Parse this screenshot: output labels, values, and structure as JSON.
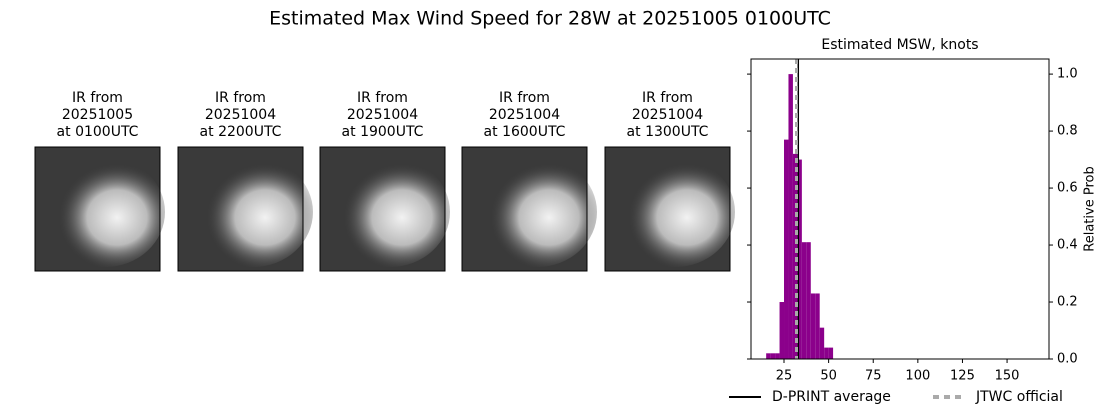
{
  "title": "Estimated Max Wind Speed for 28W at 20251005 0100UTC",
  "panels": [
    {
      "lines": [
        "IR from",
        "20251005",
        "at 0100UTC"
      ]
    },
    {
      "lines": [
        "IR from",
        "20251004",
        "at 2200UTC"
      ]
    },
    {
      "lines": [
        "IR from",
        "20251004",
        "at 1900UTC"
      ]
    },
    {
      "lines": [
        "IR from",
        "20251004",
        "at 1600UTC"
      ]
    },
    {
      "lines": [
        "IR from",
        "20251004",
        "at 1300UTC"
      ]
    }
  ],
  "chart_data": {
    "type": "histogram",
    "title": "Estimated MSW, knots",
    "ylabel": "Relative Prob",
    "bins": [
      15,
      17.5,
      20,
      22.5,
      25,
      27.5,
      30,
      32.5,
      35,
      37.5,
      40,
      42.5,
      45,
      47.5,
      50,
      52.5
    ],
    "values": [
      0.02,
      0.02,
      0.02,
      0.2,
      0.77,
      1.0,
      0.72,
      0.7,
      0.41,
      0.41,
      0.23,
      0.23,
      0.11,
      0.04,
      0.04
    ],
    "color": "#8b008b",
    "xlim": [
      6.5,
      173.5
    ],
    "xticks": [
      25,
      50,
      75,
      100,
      125,
      150
    ],
    "ylim": [
      0,
      1.053
    ],
    "yticks": [
      {
        "value": 0,
        "label": "0.0"
      },
      0.2,
      0.4,
      0.6,
      0.8,
      {
        "value": 1,
        "label": "1.0"
      }
    ],
    "lines": [
      {
        "name": "D-PRINT average",
        "value": 33,
        "color": "#000000",
        "dashed": false
      },
      {
        "name": "JTWC official",
        "value": 32,
        "color": "#aaaaaa",
        "dashed": true
      }
    ]
  }
}
